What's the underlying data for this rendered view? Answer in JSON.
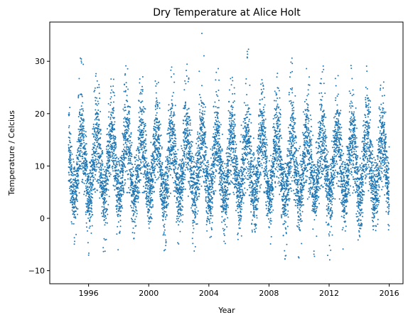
{
  "chart_data": {
    "type": "scatter",
    "title": "Dry Temperature at Alice Holt",
    "xlabel": "Year",
    "ylabel": "Temperature / Celcius",
    "xlim": [
      "1993-06-01",
      "2016-12-01"
    ],
    "ylim": [
      -12.5,
      37.5
    ],
    "x_ticks": [
      "1996",
      "2000",
      "2004",
      "2008",
      "2012",
      "2016"
    ],
    "y_ticks": [
      "−10",
      "0",
      "10",
      "20",
      "30"
    ],
    "grid": false,
    "legend": "none",
    "color": "#1f77b4",
    "data_start": "1994-09-01",
    "data_end": "2016-01-01",
    "summer_peaks": [
      {
        "year": 1995,
        "max": 32.2
      },
      {
        "year": 1996,
        "max": 29.5
      },
      {
        "year": 1997,
        "max": 29.6
      },
      {
        "year": 1998,
        "max": 29.8
      },
      {
        "year": 1999,
        "max": 30.0
      },
      {
        "year": 2000,
        "max": 28.0
      },
      {
        "year": 2001,
        "max": 31.0
      },
      {
        "year": 2002,
        "max": 29.5
      },
      {
        "year": 2003,
        "max": 35.4
      },
      {
        "year": 2004,
        "max": 30.0
      },
      {
        "year": 2005,
        "max": 29.0
      },
      {
        "year": 2006,
        "max": 34.5
      },
      {
        "year": 2007,
        "max": 26.5
      },
      {
        "year": 2008,
        "max": 27.8
      },
      {
        "year": 2009,
        "max": 31.0
      },
      {
        "year": 2010,
        "max": 30.6
      },
      {
        "year": 2011,
        "max": 30.0
      },
      {
        "year": 2012,
        "max": 29.5
      },
      {
        "year": 2013,
        "max": 30.6
      },
      {
        "year": 2014,
        "max": 29.5
      },
      {
        "year": 2015,
        "max": 27.5
      }
    ],
    "winter_minima": [
      {
        "year": 1995,
        "min": -5.5
      },
      {
        "year": 1996,
        "min": -7.5
      },
      {
        "year": 1997,
        "min": -7.0
      },
      {
        "year": 1998,
        "min": -4.5
      },
      {
        "year": 1999,
        "min": -4.5
      },
      {
        "year": 2000,
        "min": -4.0
      },
      {
        "year": 2001,
        "min": -6.5
      },
      {
        "year": 2002,
        "min": -6.5
      },
      {
        "year": 2003,
        "min": -6.5
      },
      {
        "year": 2004,
        "min": -5.5
      },
      {
        "year": 2005,
        "min": -5.5
      },
      {
        "year": 2006,
        "min": -6.0
      },
      {
        "year": 2007,
        "min": -4.5
      },
      {
        "year": 2008,
        "min": -5.5
      },
      {
        "year": 2009,
        "min": -8.5
      },
      {
        "year": 2010,
        "min": -8.0
      },
      {
        "year": 2011,
        "min": -10.5
      },
      {
        "year": 2012,
        "min": -8.0
      },
      {
        "year": 2013,
        "min": -6.0
      },
      {
        "year": 2014,
        "min": -3.5
      },
      {
        "year": 2015,
        "min": -6.5
      }
    ]
  }
}
